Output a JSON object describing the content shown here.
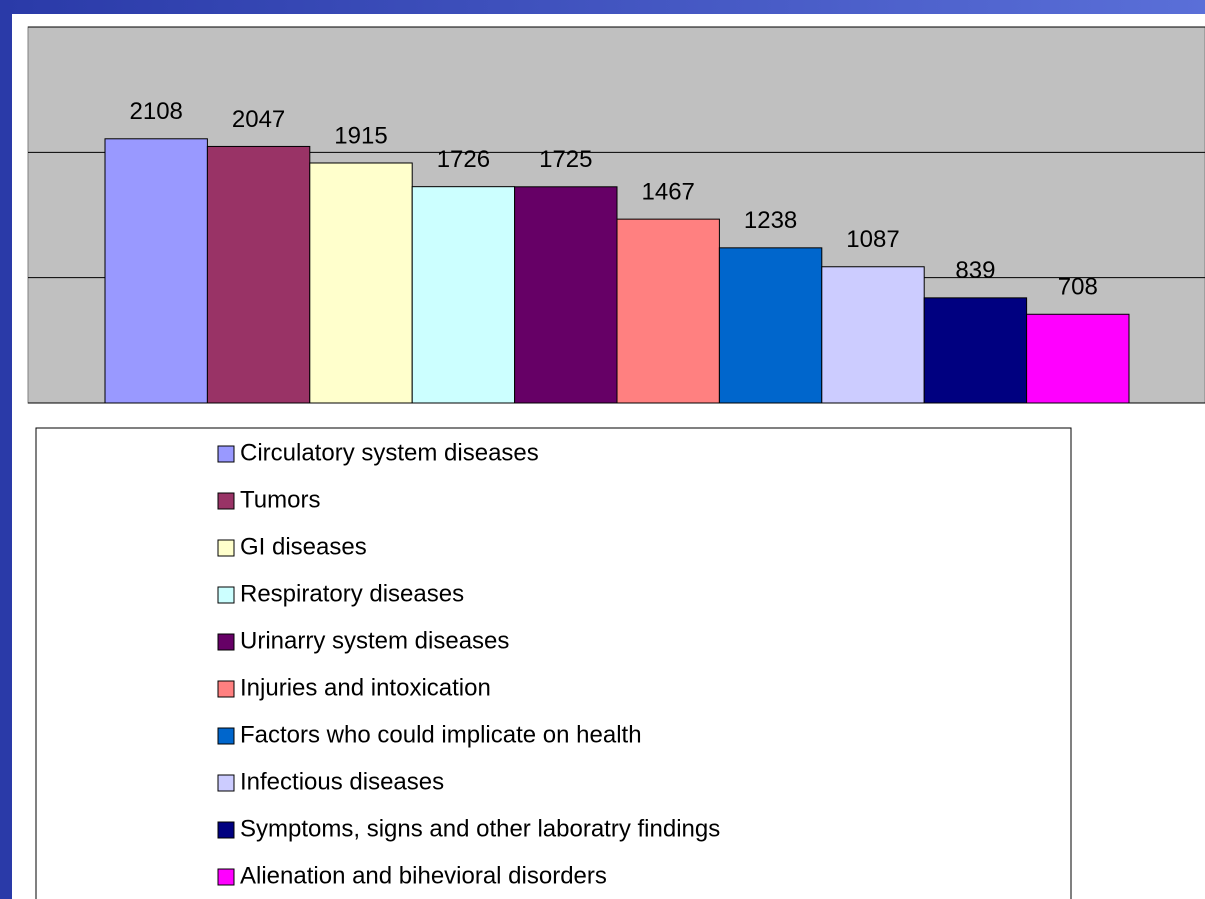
{
  "chart_data": {
    "type": "bar",
    "categories": [
      "Circulatory system diseases",
      "Tumors",
      "GI diseases",
      "Respiratory diseases",
      "Urinarry system diseases",
      "Injuries and intoxication",
      "Factors who could implicate on health",
      "Infectious diseases",
      "Symptoms, signs and other laboratry findings",
      "Alienation and bihevioral disorders"
    ],
    "values": [
      2108,
      2047,
      1915,
      1726,
      1725,
      1467,
      1238,
      1087,
      839,
      708
    ],
    "colors": [
      "#9999ff",
      "#993366",
      "#ffffcc",
      "#ccffff",
      "#660066",
      "#ff8080",
      "#0066cc",
      "#ccccff",
      "#000080",
      "#ff00ff"
    ],
    "ylim": [
      0,
      3000
    ],
    "yticks": [
      0,
      1000,
      2000,
      3000
    ],
    "grid": true
  }
}
